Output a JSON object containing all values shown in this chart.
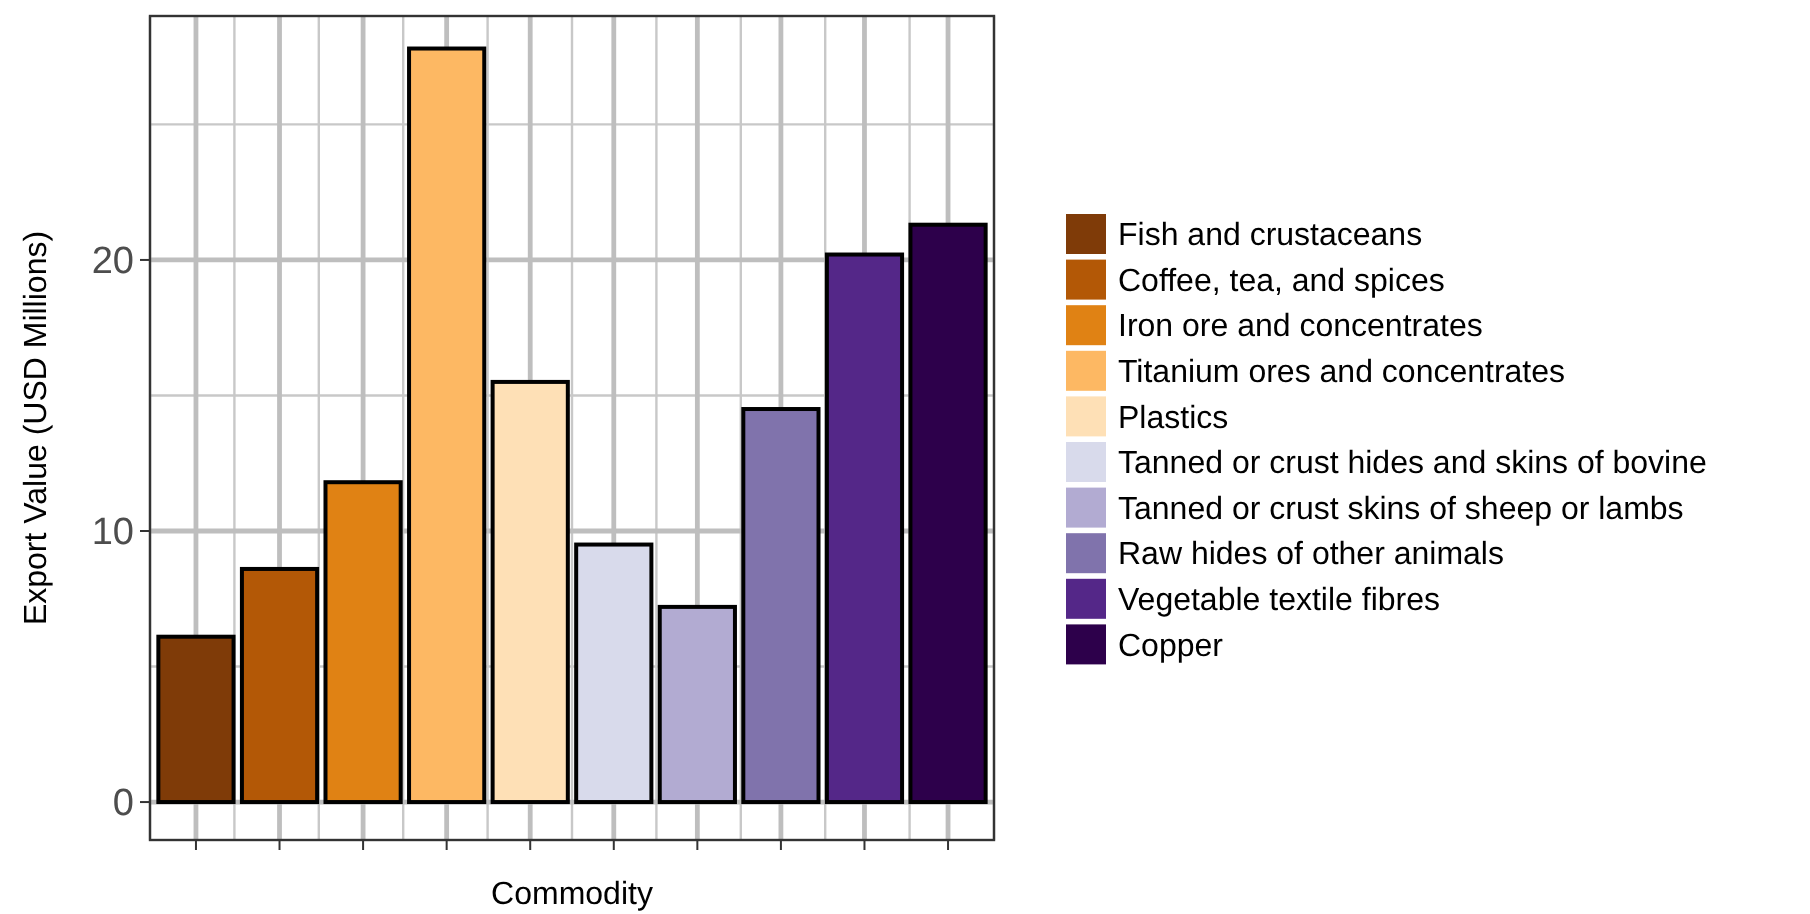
{
  "chart_data": {
    "type": "bar",
    "xlabel": "Commodity",
    "ylabel": "Export Value (USD Millions)",
    "stacked": true,
    "categories": [
      null,
      null,
      null,
      null,
      null,
      null,
      null,
      null,
      null,
      null
    ],
    "series": [
      {
        "name": "Fish and crustaceans",
        "color": "#7f3b08",
        "values": [
          6.1,
          null,
          null,
          null,
          null,
          null,
          null,
          null,
          null,
          null
        ]
      },
      {
        "name": "Coffee, tea, and spices",
        "color": "#b35806",
        "values": [
          null,
          8.6,
          null,
          null,
          null,
          null,
          null,
          null,
          null,
          null
        ]
      },
      {
        "name": "Iron ore and concentrates",
        "color": "#e08214",
        "values": [
          null,
          null,
          11.8,
          null,
          null,
          null,
          null,
          null,
          null,
          null
        ]
      },
      {
        "name": "Titanium ores and concentrates",
        "color": "#fdb863",
        "values": [
          null,
          null,
          null,
          27.8,
          null,
          null,
          null,
          null,
          null,
          null
        ]
      },
      {
        "name": "Plastics",
        "color": "#fee0b6",
        "values": [
          null,
          null,
          null,
          null,
          15.5,
          null,
          null,
          null,
          null,
          null
        ]
      },
      {
        "name": "Tanned or crust hides and skins of bovine",
        "color": "#d8daeb",
        "values": [
          null,
          null,
          null,
          null,
          null,
          9.5,
          null,
          null,
          null,
          null
        ]
      },
      {
        "name": "Tanned or crust skins of sheep or lambs",
        "color": "#b2abd2",
        "values": [
          null,
          null,
          null,
          null,
          null,
          null,
          7.2,
          null,
          null,
          null
        ]
      },
      {
        "name": "Raw hides of other animals",
        "color": "#8073ac",
        "values": [
          null,
          null,
          null,
          null,
          null,
          null,
          null,
          14.5,
          null,
          null
        ]
      },
      {
        "name": "Vegetable textile fibres",
        "color": "#542788",
        "values": [
          null,
          null,
          null,
          null,
          null,
          null,
          null,
          null,
          20.2,
          null
        ]
      },
      {
        "name": "Copper",
        "color": "#2d004b",
        "values": [
          null,
          null,
          null,
          null,
          null,
          null,
          null,
          null,
          null,
          21.3
        ]
      }
    ],
    "ylim": [
      -1.4,
      29
    ],
    "yticks": [
      0,
      10,
      20
    ],
    "grid": true,
    "legend": "right",
    "tick_labels": "y"
  }
}
